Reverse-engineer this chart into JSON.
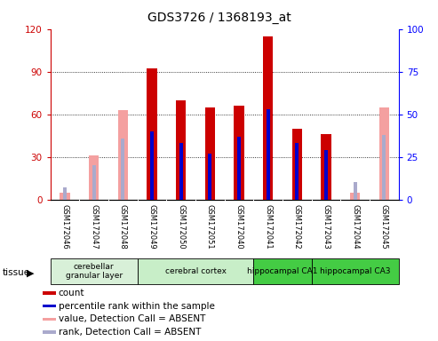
{
  "title": "GDS3726 / 1368193_at",
  "samples": [
    "GSM172046",
    "GSM172047",
    "GSM172048",
    "GSM172049",
    "GSM172050",
    "GSM172051",
    "GSM172040",
    "GSM172041",
    "GSM172042",
    "GSM172043",
    "GSM172044",
    "GSM172045"
  ],
  "count_values": [
    null,
    null,
    null,
    92,
    70,
    65,
    66,
    115,
    50,
    46,
    null,
    null
  ],
  "count_absent": [
    5,
    31,
    null,
    null,
    null,
    null,
    null,
    null,
    null,
    null,
    5,
    null
  ],
  "rank_values": [
    null,
    null,
    null,
    40,
    33,
    27,
    37,
    53,
    33,
    29,
    null,
    null
  ],
  "rank_absent": [
    7,
    20,
    36,
    null,
    null,
    null,
    null,
    null,
    null,
    null,
    10,
    38
  ],
  "pink_tall": [
    null,
    null,
    63,
    null,
    null,
    null,
    null,
    null,
    null,
    null,
    null,
    65
  ],
  "ylim_left": [
    0,
    120
  ],
  "ylim_right": [
    0,
    100
  ],
  "yticks_left": [
    0,
    30,
    60,
    90,
    120
  ],
  "yticks_right": [
    0,
    25,
    50,
    75,
    100
  ],
  "tissue_display": [
    {
      "label": "cerebellar\ngranular layer",
      "start": 0,
      "end": 3,
      "color": "#d8f0d8"
    },
    {
      "label": "cerebral cortex",
      "start": 3,
      "end": 7,
      "color": "#c8eec8"
    },
    {
      "label": "hippocampal CA1",
      "start": 7,
      "end": 9,
      "color": "#44cc44"
    },
    {
      "label": "hippocampal CA3",
      "start": 9,
      "end": 12,
      "color": "#44cc44"
    }
  ],
  "legend_items": [
    {
      "label": "count",
      "color": "#cc0000"
    },
    {
      "label": "percentile rank within the sample",
      "color": "#0000cc"
    },
    {
      "label": "value, Detection Call = ABSENT",
      "color": "#f4a0a0"
    },
    {
      "label": "rank, Detection Call = ABSENT",
      "color": "#aaaacc"
    }
  ],
  "count_color": "#cc0000",
  "rank_color": "#0000cc",
  "absent_val_color": "#f4a0a0",
  "absent_rank_color": "#aaaacc",
  "plot_bg_color": "#ffffff",
  "label_area_color": "#d0d0d0"
}
